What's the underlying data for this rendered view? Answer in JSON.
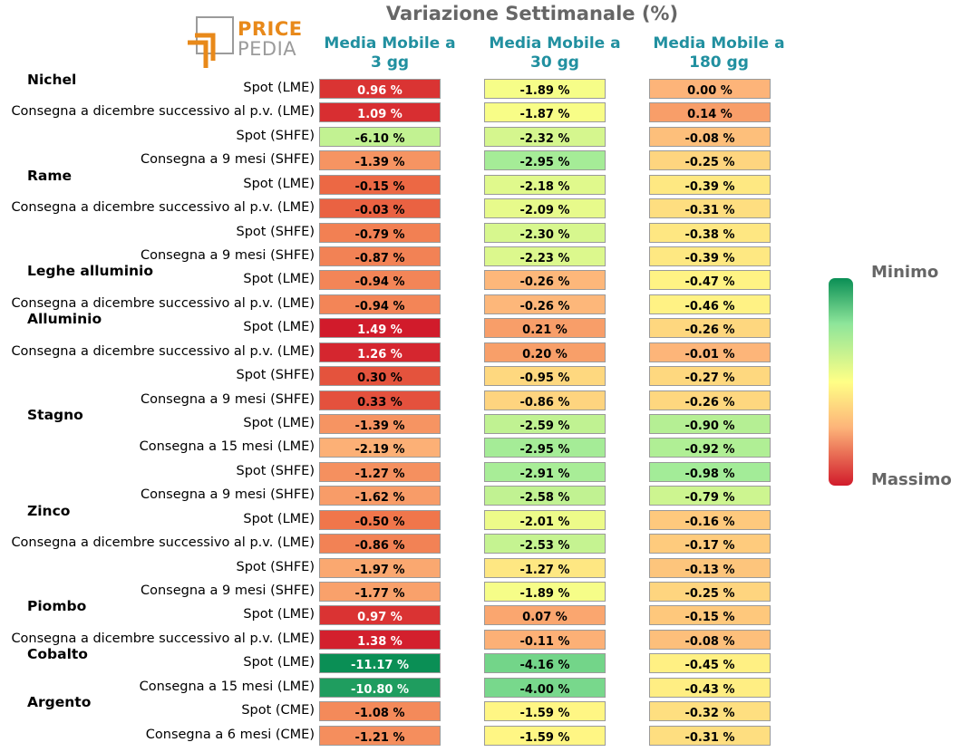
{
  "title": "Variazione Settimanale (%)",
  "logo": {
    "top": "PRICE",
    "bottom": "PEDIA"
  },
  "legend": {
    "min_label": "Minimo",
    "max_label": "Massimo"
  },
  "chart_data": {
    "type": "table",
    "title": "Variazione Settimanale (%)",
    "columns": [
      "Media Mobile a 3 gg",
      "Media Mobile a 30 gg",
      "Media Mobile a 180 gg"
    ],
    "column_lines": [
      [
        "Media Mobile a",
        "3 gg"
      ],
      [
        "Media Mobile a",
        "30 gg"
      ],
      [
        "Media Mobile a",
        "180 gg"
      ]
    ],
    "groups": [
      {
        "name": "Nichel",
        "rows": [
          {
            "label": "Spot (LME)",
            "values": [
              0.96,
              -1.89,
              0.0
            ]
          },
          {
            "label": "Consegna a dicembre successivo al p.v. (LME)",
            "values": [
              1.09,
              -1.87,
              0.14
            ]
          },
          {
            "label": "Spot (SHFE)",
            "values": [
              -6.1,
              -2.32,
              -0.08
            ]
          },
          {
            "label": "Consegna a 9 mesi (SHFE)",
            "values": [
              -1.39,
              -2.95,
              -0.25
            ]
          }
        ]
      },
      {
        "name": "Rame",
        "rows": [
          {
            "label": "Spot (LME)",
            "values": [
              -0.15,
              -2.18,
              -0.39
            ]
          },
          {
            "label": "Consegna a dicembre successivo al p.v. (LME)",
            "values": [
              -0.03,
              -2.09,
              -0.31
            ]
          },
          {
            "label": "Spot (SHFE)",
            "values": [
              -0.79,
              -2.3,
              -0.38
            ]
          },
          {
            "label": "Consegna a 9 mesi (SHFE)",
            "values": [
              -0.87,
              -2.23,
              -0.39
            ]
          }
        ]
      },
      {
        "name": "Leghe alluminio",
        "rows": [
          {
            "label": "Spot (LME)",
            "values": [
              -0.94,
              -0.26,
              -0.47
            ]
          },
          {
            "label": "Consegna a dicembre successivo al p.v. (LME)",
            "values": [
              -0.94,
              -0.26,
              -0.46
            ]
          }
        ]
      },
      {
        "name": "Alluminio",
        "rows": [
          {
            "label": "Spot (LME)",
            "values": [
              1.49,
              0.21,
              -0.26
            ]
          },
          {
            "label": "Consegna a dicembre successivo al p.v. (LME)",
            "values": [
              1.26,
              0.2,
              -0.01
            ]
          },
          {
            "label": "Spot (SHFE)",
            "values": [
              0.3,
              -0.95,
              -0.27
            ]
          },
          {
            "label": "Consegna a 9 mesi (SHFE)",
            "values": [
              0.33,
              -0.86,
              -0.26
            ]
          }
        ]
      },
      {
        "name": "Stagno",
        "rows": [
          {
            "label": "Spot (LME)",
            "values": [
              -1.39,
              -2.59,
              -0.9
            ]
          },
          {
            "label": "Consegna a 15 mesi (LME)",
            "values": [
              -2.19,
              -2.95,
              -0.92
            ]
          },
          {
            "label": "Spot (SHFE)",
            "values": [
              -1.27,
              -2.91,
              -0.98
            ]
          },
          {
            "label": "Consegna a 9 mesi (SHFE)",
            "values": [
              -1.62,
              -2.58,
              -0.79
            ]
          }
        ]
      },
      {
        "name": "Zinco",
        "rows": [
          {
            "label": "Spot (LME)",
            "values": [
              -0.5,
              -2.01,
              -0.16
            ]
          },
          {
            "label": "Consegna a dicembre successivo al p.v. (LME)",
            "values": [
              -0.86,
              -2.53,
              -0.17
            ]
          },
          {
            "label": "Spot (SHFE)",
            "values": [
              -1.97,
              -1.27,
              -0.13
            ]
          },
          {
            "label": "Consegna a 9 mesi (SHFE)",
            "values": [
              -1.77,
              -1.89,
              -0.25
            ]
          }
        ]
      },
      {
        "name": "Piombo",
        "rows": [
          {
            "label": "Spot (LME)",
            "values": [
              0.97,
              0.07,
              -0.15
            ]
          },
          {
            "label": "Consegna a dicembre successivo al p.v. (LME)",
            "values": [
              1.38,
              -0.11,
              -0.08
            ]
          }
        ]
      },
      {
        "name": "Cobalto",
        "rows": [
          {
            "label": "Spot (LME)",
            "values": [
              -11.17,
              -4.16,
              -0.45
            ]
          },
          {
            "label": "Consegna a 15 mesi (LME)",
            "values": [
              -10.8,
              -4.0,
              -0.43
            ]
          }
        ]
      },
      {
        "name": "Argento",
        "rows": [
          {
            "label": "Spot (CME)",
            "values": [
              -1.08,
              -1.59,
              -0.32
            ]
          },
          {
            "label": "Consegna a 6 mesi (CME)",
            "values": [
              -1.21,
              -1.59,
              -0.31
            ]
          }
        ]
      }
    ]
  },
  "colors": {
    "title": "#666666",
    "column_header": "#2190a0",
    "logo_orange": "#e8891a",
    "logo_gray": "#9b9b9b",
    "cell_border": "#9a9a9a"
  }
}
